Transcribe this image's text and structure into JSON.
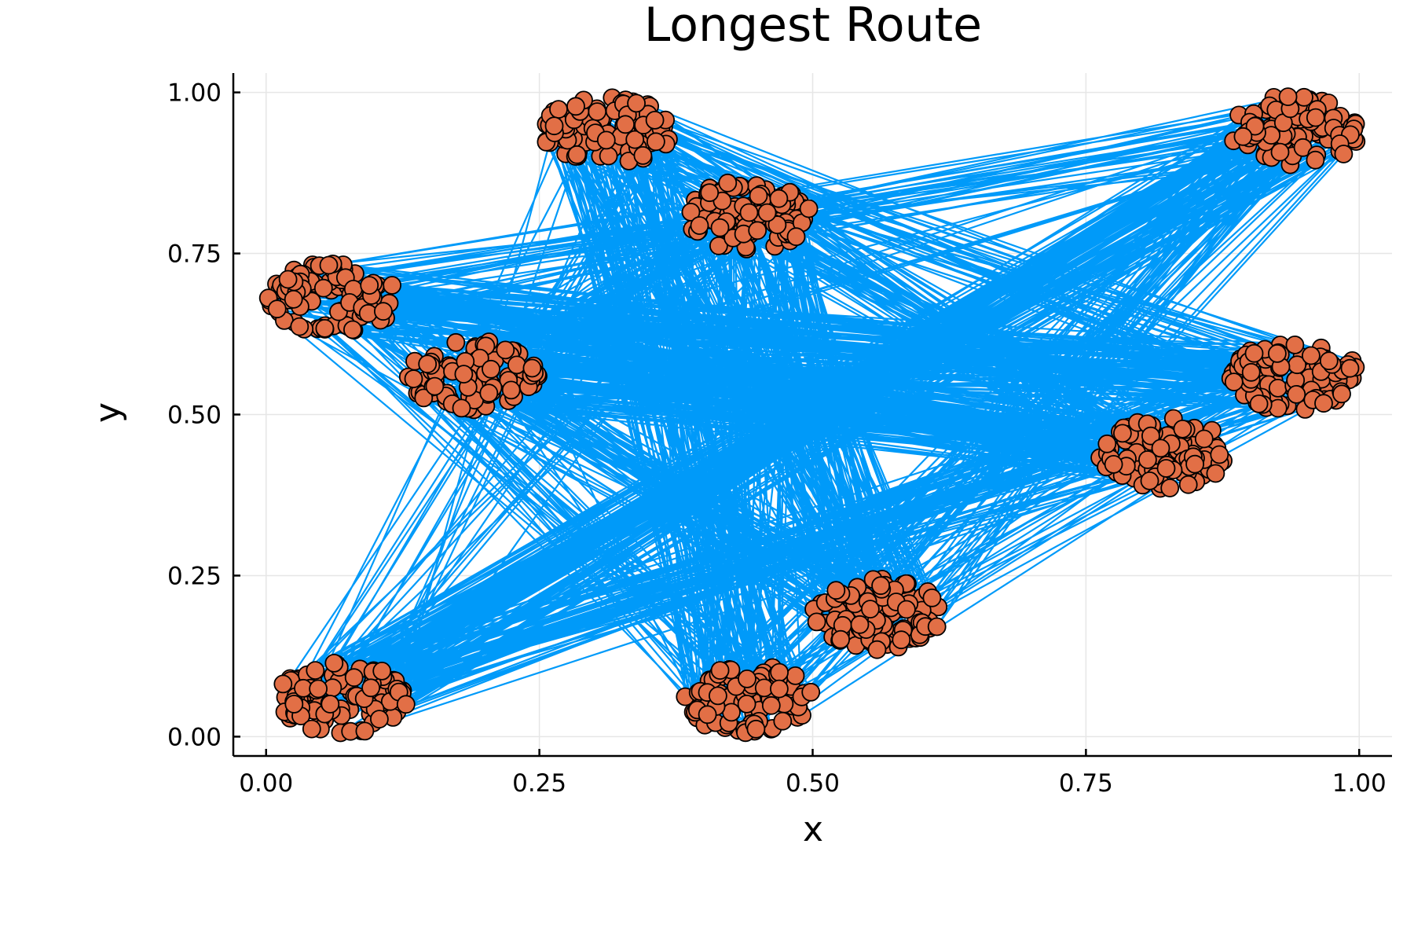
{
  "chart_data": {
    "type": "scatter",
    "title": "Longest Route",
    "xlabel": "x",
    "ylabel": "y",
    "xlim": [
      -0.03,
      1.03
    ],
    "ylim": [
      -0.03,
      1.03
    ],
    "x_ticks": [
      0.0,
      0.25,
      0.5,
      0.75,
      1.0
    ],
    "x_tick_labels": [
      "0.00",
      "0.25",
      "0.50",
      "0.75",
      "1.00"
    ],
    "y_ticks": [
      0.0,
      0.25,
      0.5,
      0.75,
      1.0
    ],
    "y_tick_labels": [
      "0.00",
      "0.25",
      "0.50",
      "0.75",
      "1.00"
    ],
    "grid": true,
    "legend": "none",
    "colors": {
      "route": "#009af9",
      "points": "#e26f46",
      "marker_edge": "#000000"
    },
    "cluster_centers": [
      {
        "x": 0.07,
        "y": 0.06,
        "count": 100
      },
      {
        "x": 0.06,
        "y": 0.68,
        "count": 100
      },
      {
        "x": 0.19,
        "y": 0.56,
        "count": 100
      },
      {
        "x": 0.31,
        "y": 0.94,
        "count": 100
      },
      {
        "x": 0.44,
        "y": 0.81,
        "count": 100
      },
      {
        "x": 0.44,
        "y": 0.06,
        "count": 100
      },
      {
        "x": 0.56,
        "y": 0.19,
        "count": 100
      },
      {
        "x": 0.82,
        "y": 0.44,
        "count": 100
      },
      {
        "x": 0.94,
        "y": 0.56,
        "count": 100
      },
      {
        "x": 0.94,
        "y": 0.94,
        "count": 100
      }
    ],
    "cluster_spread": {
      "x": 0.06,
      "y": 0.055
    },
    "series": [
      {
        "kind": "line",
        "description_index": 0
      },
      {
        "kind": "scatter",
        "description_index": 1
      }
    ]
  }
}
